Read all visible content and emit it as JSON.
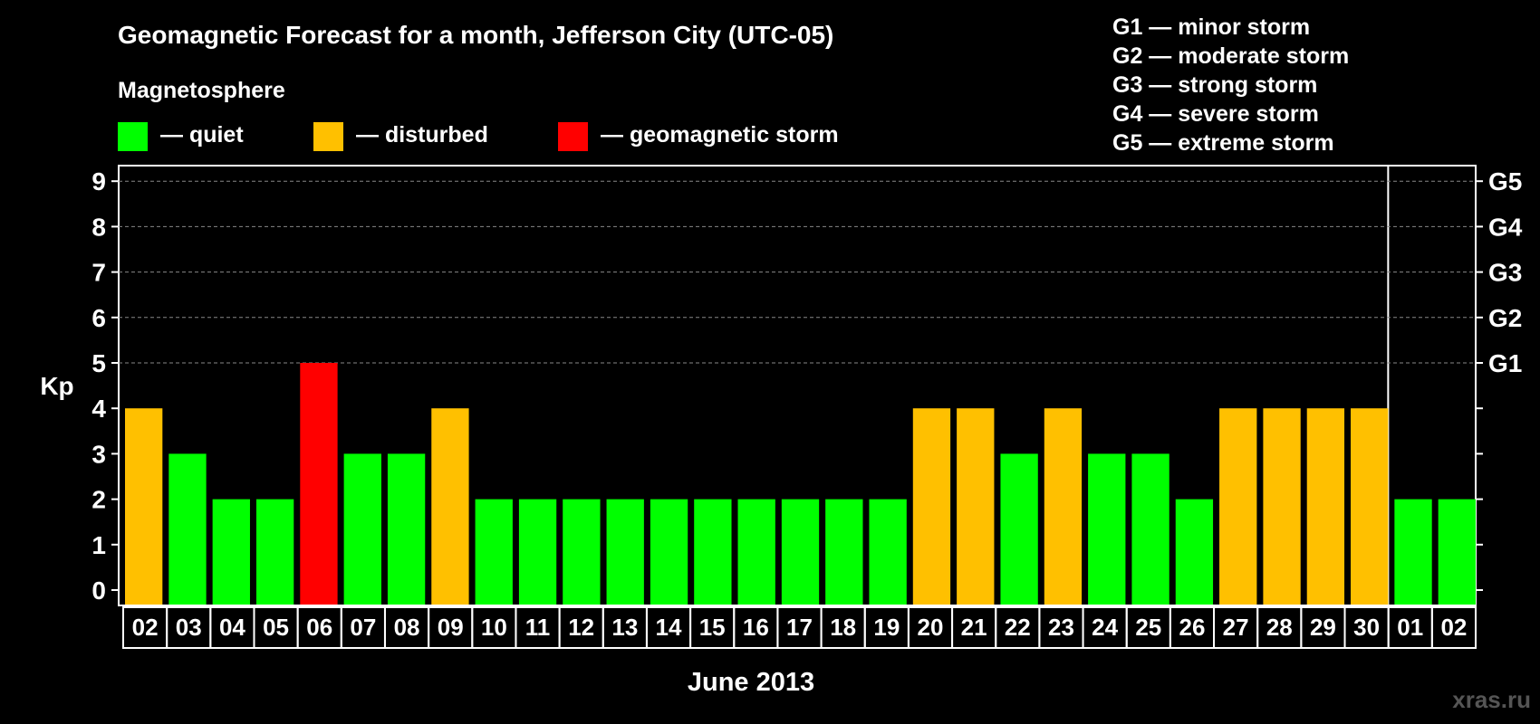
{
  "title": "Geomagnetic Forecast for a month, Jefferson City (UTC-05)",
  "legend": {
    "heading": "Magnetosphere",
    "items": [
      {
        "label": "— quiet",
        "color": "#00ff00"
      },
      {
        "label": "— disturbed",
        "color": "#ffc000"
      },
      {
        "label": "— geomagnetic storm",
        "color": "#ff0000"
      }
    ]
  },
  "storm_levels": [
    "G1 — minor storm",
    "G2 — moderate storm",
    "G3 — strong storm",
    "G4 — severe storm",
    "G5 — extreme storm"
  ],
  "watermark": "xras.ru",
  "chart_data": {
    "type": "bar",
    "ylabel": "Kp",
    "xlabel": "June 2013",
    "ylim": [
      0,
      9
    ],
    "yticks": [
      "0",
      "1",
      "2",
      "3",
      "4",
      "5",
      "6",
      "7",
      "8",
      "9"
    ],
    "right_ticks": [
      {
        "kp": 5,
        "label": "G1"
      },
      {
        "kp": 6,
        "label": "G2"
      },
      {
        "kp": 7,
        "label": "G3"
      },
      {
        "kp": 8,
        "label": "G4"
      },
      {
        "kp": 9,
        "label": "G5"
      }
    ],
    "categories": [
      "02",
      "03",
      "04",
      "05",
      "06",
      "07",
      "08",
      "09",
      "10",
      "11",
      "12",
      "13",
      "14",
      "15",
      "16",
      "17",
      "18",
      "19",
      "20",
      "21",
      "22",
      "23",
      "24",
      "25",
      "26",
      "27",
      "28",
      "29",
      "30",
      "01",
      "02"
    ],
    "values": [
      4,
      3,
      2,
      2,
      5,
      3,
      3,
      4,
      2,
      2,
      2,
      2,
      2,
      2,
      2,
      2,
      2,
      2,
      4,
      4,
      3,
      4,
      3,
      3,
      2,
      4,
      4,
      4,
      4,
      2,
      2
    ],
    "colors": {
      "quiet": "#00ff00",
      "disturbed": "#ffc000",
      "storm": "#ff0000"
    },
    "month_separator_after_index": 28,
    "grid": true
  }
}
